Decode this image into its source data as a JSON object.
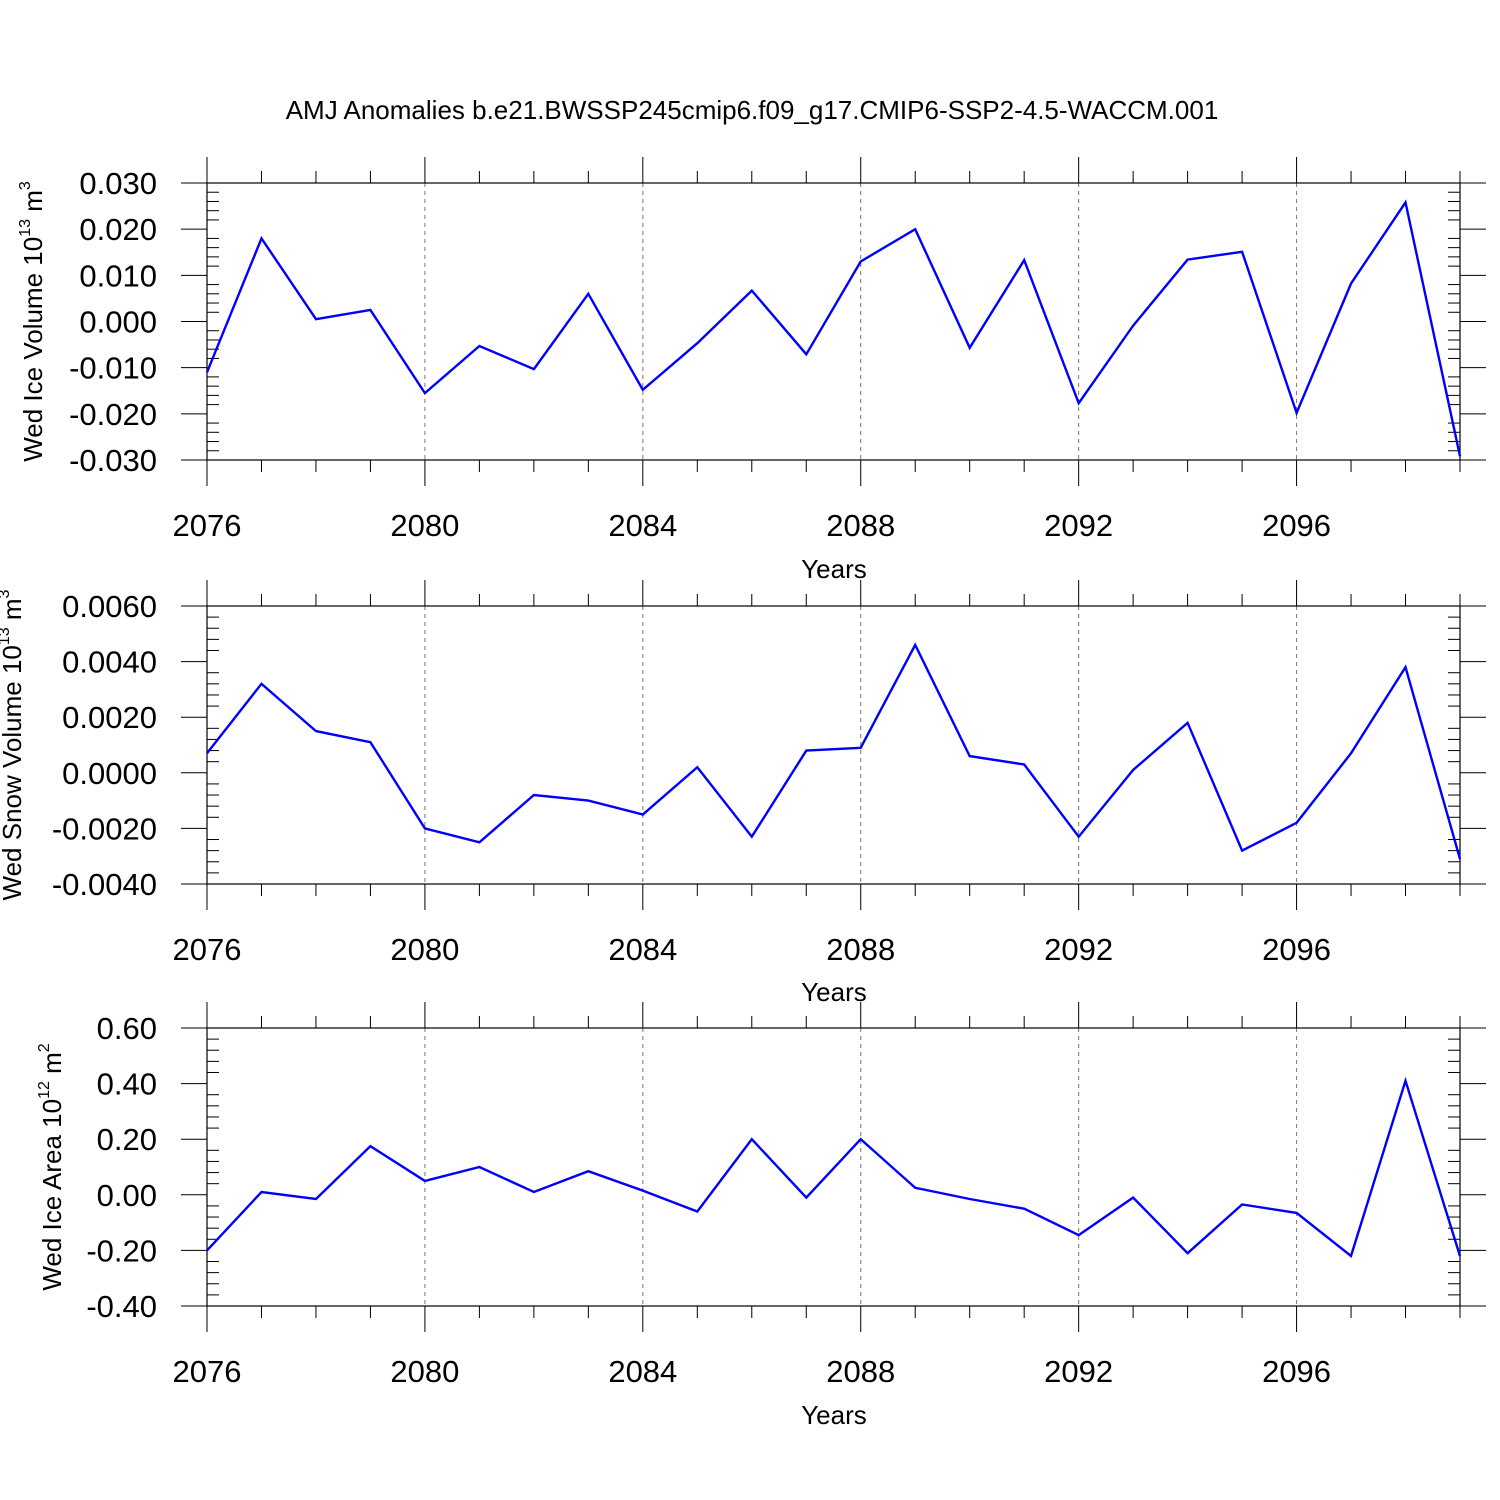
{
  "title": "AMJ Anomalies b.e21.BWSSP245cmip6.f09_g17.CMIP6-SSP2-4.5-WACCM.001",
  "chart_data": [
    {
      "type": "line",
      "ylabel": "Wed Ice Volume 10",
      "ylabel_exp": "13",
      "ylabel_unit": " m",
      "ylabel_unit_exp": "3",
      "xlabel": "Years",
      "xlim": [
        2076,
        2099
      ],
      "ylim": [
        -0.03,
        0.03
      ],
      "xticks": [
        2076,
        2080,
        2084,
        2088,
        2092,
        2096
      ],
      "xtick_labels": [
        "2076",
        "2080",
        "2084",
        "2088",
        "2092",
        "2096"
      ],
      "yticks": [
        -0.03,
        -0.02,
        -0.01,
        0.0,
        0.01,
        0.02,
        0.03
      ],
      "ytick_labels": [
        "-0.030",
        "-0.020",
        "-0.010",
        "0.000",
        "0.010",
        "0.020",
        "0.030"
      ],
      "grid": "vertical dashed at major x ticks",
      "color": "#0000ff",
      "x": [
        2076,
        2077,
        2078,
        2079,
        2080,
        2081,
        2082,
        2083,
        2084,
        2085,
        2086,
        2087,
        2088,
        2089,
        2090,
        2091,
        2092,
        2093,
        2094,
        2095,
        2096,
        2097,
        2098,
        2099
      ],
      "y": [
        -0.011,
        0.018,
        0.0005,
        0.0025,
        -0.0155,
        -0.0053,
        -0.0103,
        0.006,
        -0.0148,
        -0.0047,
        0.0067,
        -0.0071,
        0.013,
        0.02,
        -0.0057,
        0.0133,
        -0.0177,
        -0.0009,
        0.0134,
        0.0151,
        -0.0198,
        0.0082,
        0.0258,
        -0.0292
      ]
    },
    {
      "type": "line",
      "ylabel": "Wed Snow Volume 10",
      "ylabel_exp": "13",
      "ylabel_unit": " m",
      "ylabel_unit_exp": "3",
      "xlabel": "Years",
      "xlim": [
        2076,
        2099
      ],
      "ylim": [
        -0.004,
        0.006
      ],
      "xticks": [
        2076,
        2080,
        2084,
        2088,
        2092,
        2096
      ],
      "xtick_labels": [
        "2076",
        "2080",
        "2084",
        "2088",
        "2092",
        "2096"
      ],
      "yticks": [
        -0.004,
        -0.002,
        0.0,
        0.002,
        0.004,
        0.006
      ],
      "ytick_labels": [
        "-0.0040",
        "-0.0020",
        "0.0000",
        "0.0020",
        "0.0040",
        "0.0060"
      ],
      "grid": "vertical dashed at major x ticks",
      "color": "#0000ff",
      "x": [
        2076,
        2077,
        2078,
        2079,
        2080,
        2081,
        2082,
        2083,
        2084,
        2085,
        2086,
        2087,
        2088,
        2089,
        2090,
        2091,
        2092,
        2093,
        2094,
        2095,
        2096,
        2097,
        2098,
        2099
      ],
      "y": [
        0.0007,
        0.0032,
        0.0015,
        0.0011,
        -0.002,
        -0.0025,
        -0.0008,
        -0.001,
        -0.0015,
        0.0002,
        -0.0023,
        0.0008,
        0.0009,
        0.0046,
        0.0006,
        0.0003,
        -0.0023,
        0.0001,
        0.0018,
        -0.0028,
        -0.0018,
        0.0007,
        0.0038,
        -0.0031
      ]
    },
    {
      "type": "line",
      "ylabel": "Wed Ice Area 10",
      "ylabel_exp": "12",
      "ylabel_unit": " m",
      "ylabel_unit_exp": "2",
      "xlabel": "Years",
      "xlim": [
        2076,
        2099
      ],
      "ylim": [
        -0.4,
        0.6
      ],
      "xticks": [
        2076,
        2080,
        2084,
        2088,
        2092,
        2096
      ],
      "xtick_labels": [
        "2076",
        "2080",
        "2084",
        "2088",
        "2092",
        "2096"
      ],
      "yticks": [
        -0.4,
        -0.2,
        0.0,
        0.2,
        0.4,
        0.6
      ],
      "ytick_labels": [
        "-0.40",
        "-0.20",
        "0.00",
        "0.20",
        "0.40",
        "0.60"
      ],
      "grid": "vertical dashed at major x ticks",
      "color": "#0000ff",
      "x": [
        2076,
        2077,
        2078,
        2079,
        2080,
        2081,
        2082,
        2083,
        2084,
        2085,
        2086,
        2087,
        2088,
        2089,
        2090,
        2091,
        2092,
        2093,
        2094,
        2095,
        2096,
        2097,
        2098,
        2099
      ],
      "y": [
        -0.2,
        0.01,
        -0.015,
        0.175,
        0.05,
        0.1,
        0.01,
        0.085,
        0.015,
        -0.06,
        0.2,
        -0.01,
        0.2,
        0.025,
        -0.015,
        -0.05,
        -0.145,
        -0.01,
        -0.21,
        -0.035,
        -0.065,
        -0.22,
        0.41,
        -0.22
      ]
    }
  ]
}
